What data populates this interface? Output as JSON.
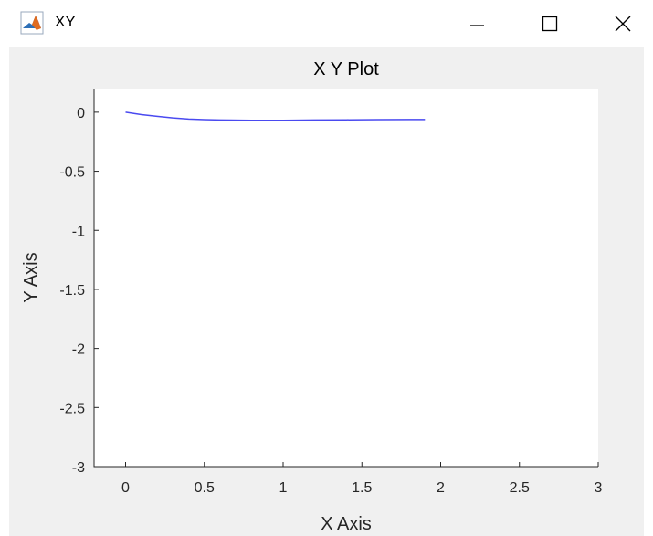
{
  "window": {
    "title": "XY",
    "icon": "matlab-icon",
    "controls": [
      "minimize-icon",
      "maximize-icon",
      "close-icon"
    ]
  },
  "colors": {
    "line": "#4a4af0",
    "figure_bg": "#f0f0f0",
    "axes_bg": "#ffffff",
    "axis": "#262626"
  },
  "chart_data": {
    "type": "line",
    "title": "X Y Plot",
    "xlabel": "X Axis",
    "ylabel": "Y Axis",
    "xlim": [
      -0.2,
      3
    ],
    "ylim": [
      -3,
      0.2
    ],
    "xticks": [
      0,
      0.5,
      1,
      1.5,
      2,
      2.5,
      3
    ],
    "xtick_labels": [
      "0",
      "0.5",
      "1",
      "1.5",
      "2",
      "2.5",
      "3"
    ],
    "yticks": [
      0,
      -0.5,
      -1,
      -1.5,
      -2,
      -2.5,
      -3
    ],
    "ytick_labels": [
      "0",
      "-0.5",
      "-1",
      "-1.5",
      "-2",
      "-2.5",
      "-3"
    ],
    "grid": false,
    "series": [
      {
        "x": [
          0,
          0.1,
          0.2,
          0.3,
          0.4,
          0.5,
          0.6,
          0.8,
          1.0,
          1.2,
          1.4,
          1.6,
          1.8,
          1.9
        ],
        "y": [
          0,
          -0.02,
          -0.035,
          -0.048,
          -0.058,
          -0.063,
          -0.066,
          -0.068,
          -0.068,
          -0.066,
          -0.064,
          -0.063,
          -0.062,
          -0.062
        ]
      }
    ]
  }
}
